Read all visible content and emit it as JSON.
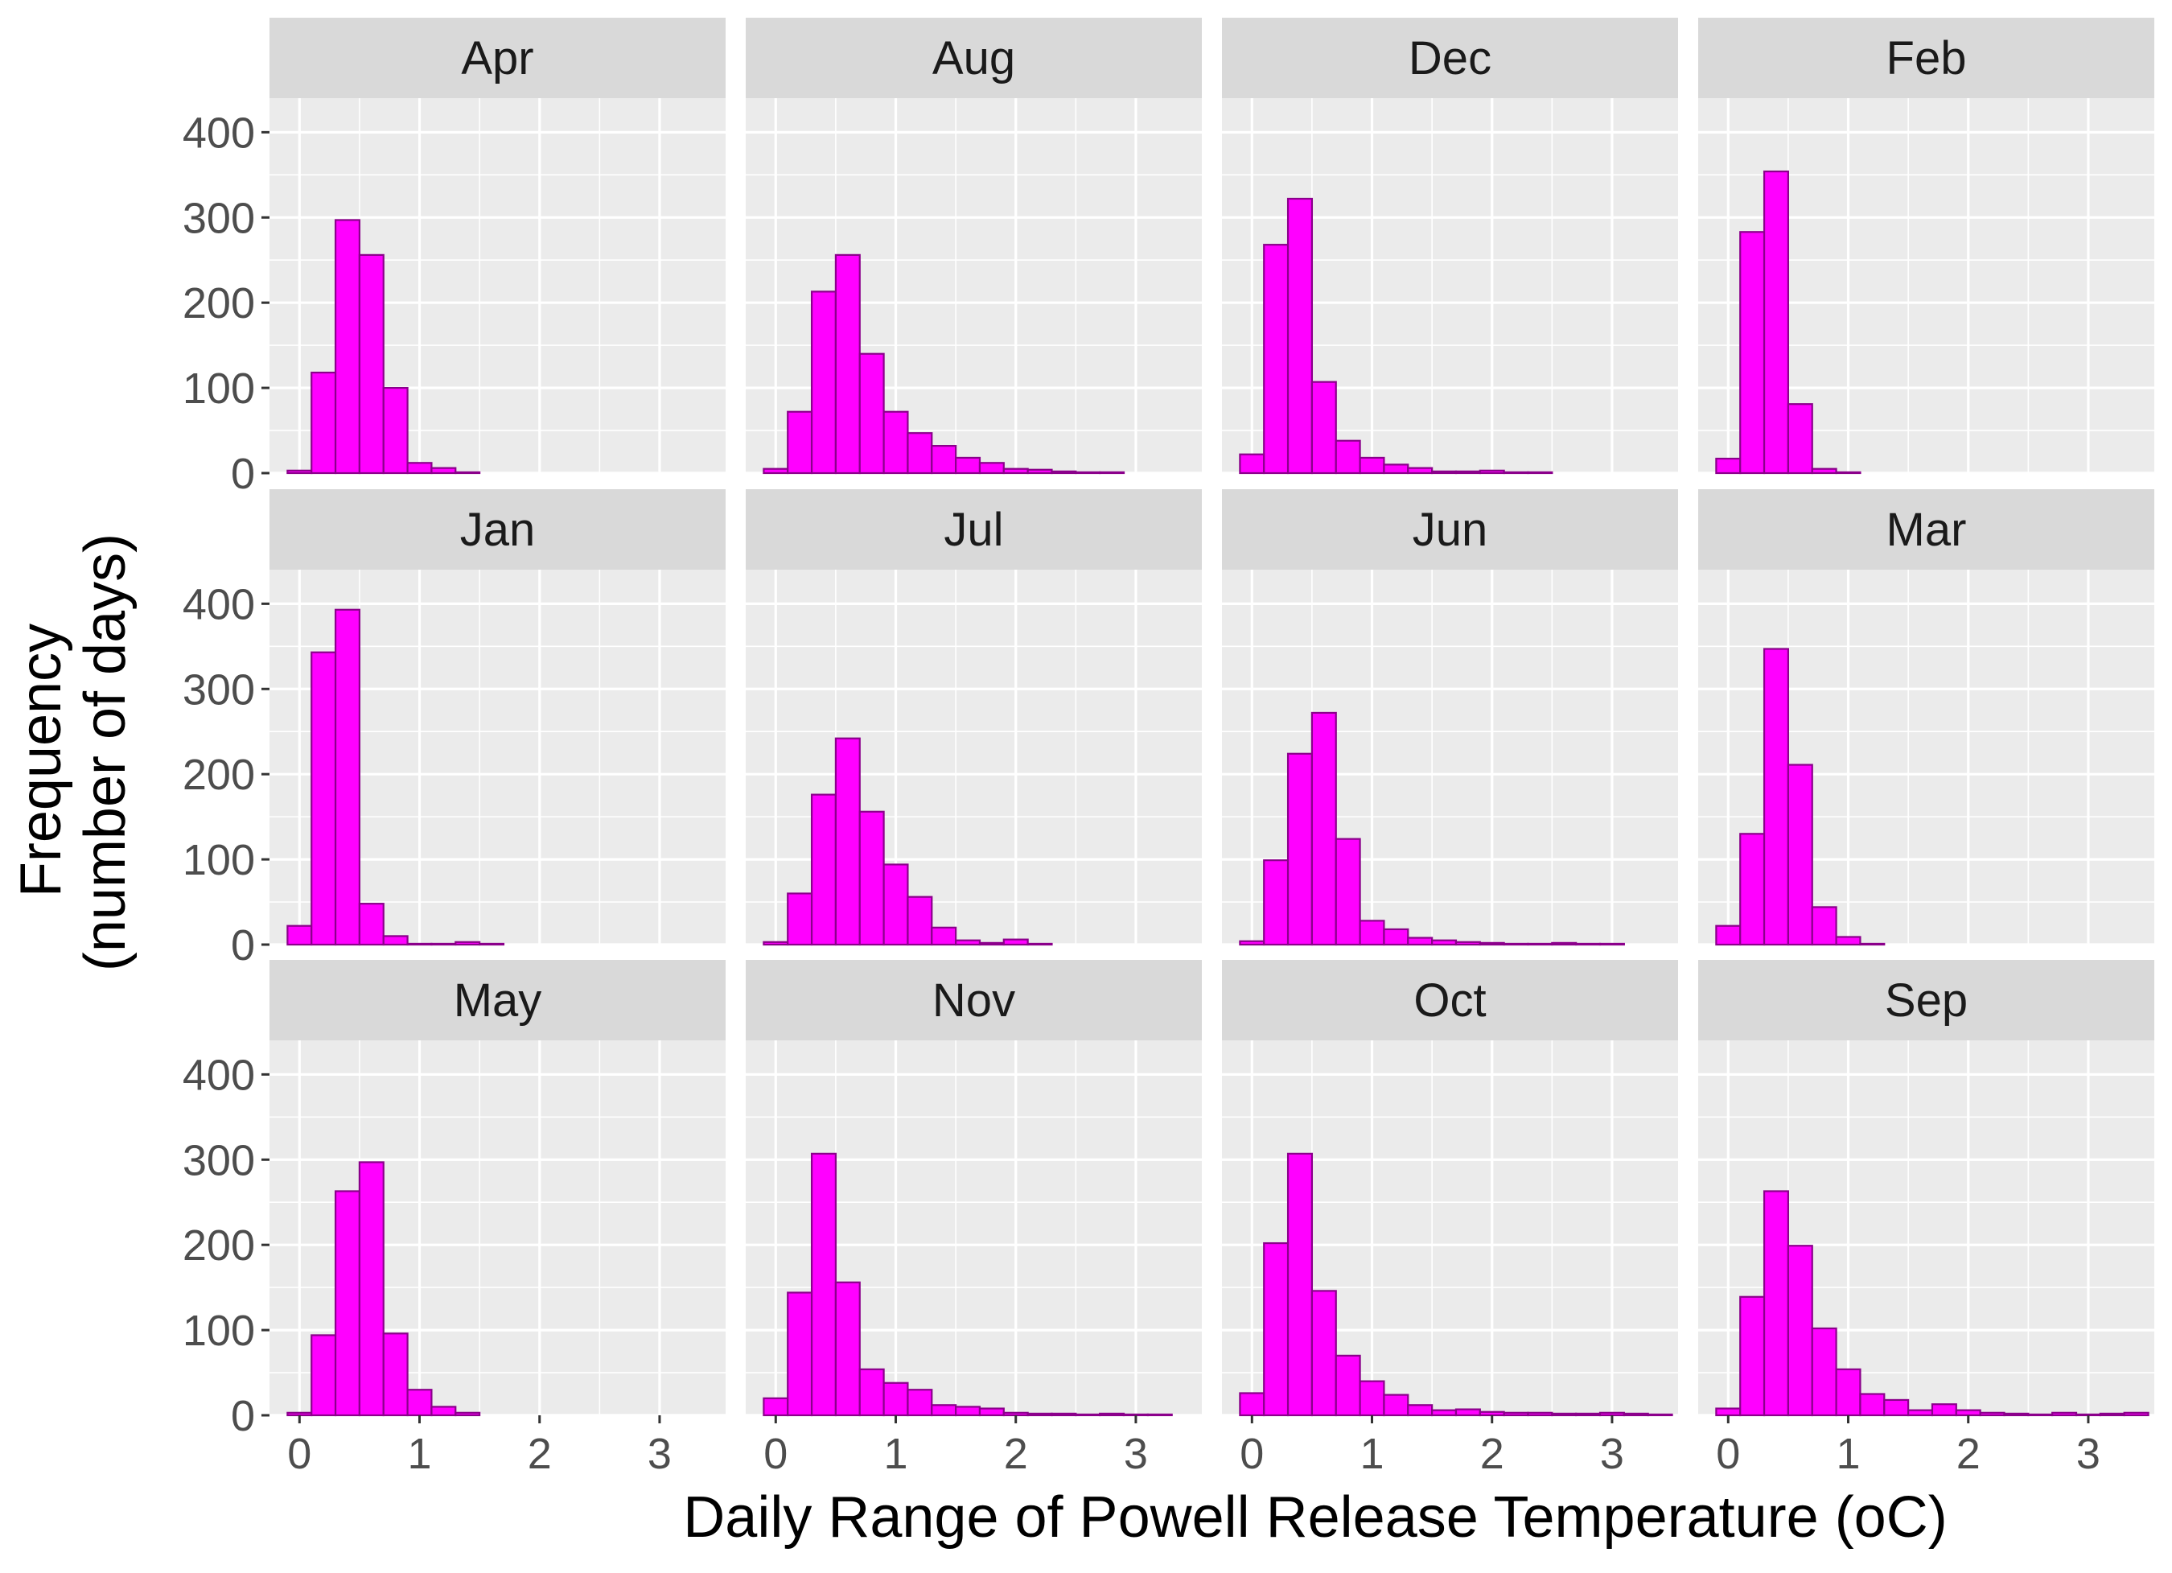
{
  "chart_data": {
    "type": "bar",
    "chart_kind": "faceted-histogram",
    "xlabel": "Daily Range of Powell Release Temperature (oC)",
    "ylabel_lines": [
      "Frequency",
      "(number of days)"
    ],
    "xlim": [
      -0.25,
      3.55
    ],
    "ylim": [
      0,
      440
    ],
    "x_ticks": [
      0,
      1,
      2,
      3
    ],
    "y_ticks": [
      0,
      100,
      200,
      300,
      400
    ],
    "bin_width": 0.2,
    "bin_starts": [
      -0.1,
      0.1,
      0.3,
      0.5,
      0.7,
      0.9,
      1.1,
      1.3,
      1.5,
      1.7,
      1.9,
      2.1,
      2.3,
      2.5,
      2.7,
      2.9,
      3.1,
      3.3
    ],
    "colors": {
      "bar_fill": "#FF00FF",
      "bar_outline": "#8B008B",
      "panel_bg": "#EBEBEB",
      "strip_bg": "#D9D9D9",
      "grid": "#FFFFFF",
      "text": "#4D4D4D"
    },
    "grid": true,
    "panels": [
      {
        "name": "Apr",
        "values": [
          3,
          118,
          297,
          256,
          100,
          12,
          6,
          1,
          0,
          0,
          0,
          0,
          0,
          0,
          0,
          0,
          0,
          0
        ]
      },
      {
        "name": "Aug",
        "values": [
          5,
          72,
          213,
          256,
          140,
          72,
          47,
          32,
          18,
          12,
          5,
          4,
          2,
          1,
          1,
          0,
          0,
          0
        ]
      },
      {
        "name": "Dec",
        "values": [
          22,
          268,
          322,
          107,
          38,
          18,
          10,
          6,
          2,
          2,
          3,
          1,
          1,
          0,
          0,
          0,
          0,
          0
        ]
      },
      {
        "name": "Feb",
        "values": [
          17,
          283,
          354,
          81,
          5,
          1,
          0,
          0,
          0,
          0,
          0,
          0,
          0,
          0,
          0,
          0,
          0,
          0
        ]
      },
      {
        "name": "Jan",
        "values": [
          22,
          343,
          393,
          48,
          10,
          1,
          1,
          3,
          1,
          0,
          0,
          0,
          0,
          0,
          0,
          0,
          0,
          0
        ]
      },
      {
        "name": "Jul",
        "values": [
          3,
          60,
          176,
          242,
          156,
          94,
          56,
          20,
          5,
          2,
          6,
          1,
          0,
          0,
          0,
          0,
          0,
          0
        ]
      },
      {
        "name": "Jun",
        "values": [
          4,
          99,
          224,
          272,
          124,
          28,
          18,
          8,
          5,
          3,
          2,
          1,
          1,
          2,
          1,
          1,
          0,
          0
        ]
      },
      {
        "name": "Mar",
        "values": [
          22,
          130,
          347,
          211,
          44,
          9,
          1,
          0,
          0,
          0,
          0,
          0,
          0,
          0,
          0,
          0,
          0,
          0
        ]
      },
      {
        "name": "May",
        "values": [
          3,
          94,
          263,
          297,
          96,
          30,
          10,
          3,
          0,
          0,
          0,
          0,
          0,
          0,
          0,
          0,
          0,
          0
        ]
      },
      {
        "name": "Nov",
        "values": [
          20,
          144,
          307,
          156,
          54,
          38,
          30,
          12,
          10,
          8,
          3,
          2,
          2,
          1,
          2,
          1,
          1,
          0
        ]
      },
      {
        "name": "Oct",
        "values": [
          26,
          202,
          307,
          146,
          70,
          40,
          24,
          12,
          6,
          7,
          4,
          3,
          3,
          2,
          2,
          3,
          2,
          1
        ]
      },
      {
        "name": "Sep",
        "values": [
          8,
          139,
          263,
          199,
          102,
          54,
          25,
          18,
          6,
          13,
          6,
          3,
          2,
          1,
          3,
          1,
          2,
          3
        ]
      }
    ]
  }
}
